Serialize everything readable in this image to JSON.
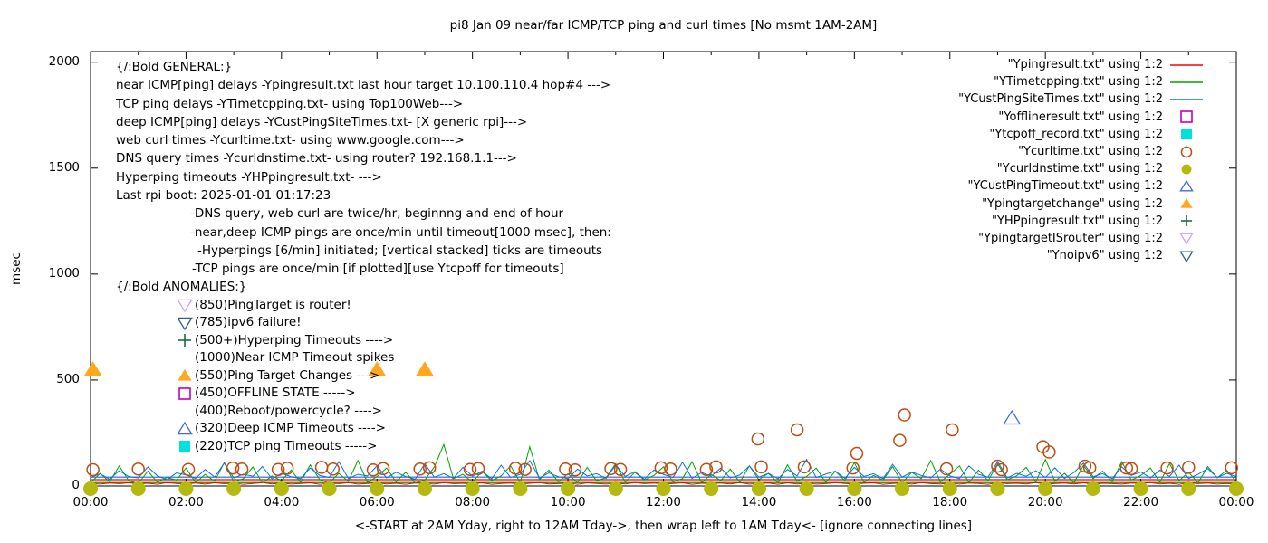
{
  "chart_data": {
    "type": "mixed-line-scatter",
    "title": "pi8 Jan 09  near/far ICMP/TCP ping and curl times [No msmt 1AM-2AM]",
    "ylabel": "msec",
    "xlabel": "<-START at 2AM Yday, right to 12AM Tday->, then wrap left to 1AM Tday<- [ignore connecting lines]",
    "grid": false,
    "legend_position": "top-right-inside",
    "x_range_hours": [
      0,
      24
    ],
    "y_range_msec": [
      0,
      2050
    ],
    "y_ticks": [
      0,
      500,
      1000,
      1500,
      2000
    ],
    "x_ticks": [
      {
        "h": 0,
        "label": "00:00"
      },
      {
        "h": 2,
        "label": "02:00"
      },
      {
        "h": 4,
        "label": "04:00"
      },
      {
        "h": 6,
        "label": "06:00"
      },
      {
        "h": 8,
        "label": "08:00"
      },
      {
        "h": 10,
        "label": "10:00"
      },
      {
        "h": 12,
        "label": "12:00"
      },
      {
        "h": 14,
        "label": "14:00"
      },
      {
        "h": 16,
        "label": "16:00"
      },
      {
        "h": 18,
        "label": "18:00"
      },
      {
        "h": 20,
        "label": "20:00"
      },
      {
        "h": 22,
        "label": "22:00"
      },
      {
        "h": 24,
        "label": "00:00"
      }
    ],
    "x_minor_tick_every_hours": 1,
    "baselines_msec": [
      {
        "color": "#0d6ef5",
        "msec": 42
      },
      {
        "color": "#ff0000",
        "msec": 30
      },
      {
        "color": "#00a400",
        "msec": 16
      }
    ],
    "series": [
      {
        "name": "Ypingresult.txt",
        "legend_label": "\"Ypingresult.txt\" using 1:2",
        "type": "line",
        "color": "#ff0000",
        "sample": "line",
        "x_start": 0,
        "x_step": 0.2,
        "values": [
          12,
          9,
          14,
          11,
          15,
          10,
          13,
          8,
          16,
          12,
          10,
          14,
          9,
          15,
          11,
          13,
          8,
          12,
          16,
          10,
          14,
          9,
          12,
          15,
          8,
          13,
          11,
          16,
          9,
          12,
          15,
          10,
          13,
          8,
          14,
          12,
          9,
          16,
          11,
          13,
          10,
          15,
          8,
          12,
          14,
          9,
          13,
          16,
          10,
          11,
          14,
          8,
          15,
          12,
          9,
          13,
          10,
          16,
          11,
          14,
          9,
          12,
          15,
          8,
          13,
          11,
          14,
          10,
          16,
          9,
          12,
          14,
          8,
          15,
          10,
          13,
          9,
          11,
          16,
          12,
          10,
          13,
          15,
          8,
          12,
          14,
          9,
          16,
          11,
          10,
          13,
          9,
          14,
          12,
          8,
          15,
          11,
          13,
          10,
          16,
          9,
          12,
          14,
          10,
          15,
          8,
          13,
          11,
          9,
          14,
          12,
          16,
          10,
          13,
          8,
          15,
          11,
          14,
          9,
          12,
          10
        ]
      },
      {
        "name": "YTimetcpping.txt",
        "legend_label": "\"YTimetcpping.txt\" using 1:2",
        "type": "line",
        "color": "#00a400",
        "sample": "line",
        "x_start": 0,
        "x_step": 0.2,
        "values": [
          15,
          60,
          20,
          95,
          25,
          12,
          70,
          18,
          40,
          28,
          85,
          16,
          55,
          22,
          110,
          20,
          35,
          90,
          14,
          48,
          25,
          75,
          18,
          100,
          30,
          15,
          60,
          22,
          120,
          17,
          45,
          85,
          20,
          65,
          15,
          28,
          90,
          195,
          35,
          55,
          18,
          70,
          25,
          48,
          95,
          16,
          185,
          30,
          75,
          20,
          58,
          15,
          88,
          24,
          40,
          105,
          18,
          65,
          28,
          50,
          90,
          20,
          35,
          115,
          16,
          55,
          25,
          80,
          18,
          95,
          30,
          60,
          15,
          100,
          22,
          45,
          85,
          17,
          70,
          25,
          110,
          18,
          50,
          28,
          92,
          15,
          65,
          35,
          120,
          20,
          55,
          95,
          16,
          75,
          25,
          105,
          30,
          48,
          88,
          18,
          125,
          22,
          60,
          15,
          98,
          35,
          70,
          20,
          115,
          28,
          50,
          85,
          18,
          105,
          25,
          65,
          15,
          92,
          38,
          75,
          20
        ]
      },
      {
        "name": "YCustPingSiteTimes.txt",
        "legend_label": "\"YCustPingSiteTimes.txt\" using 1:2",
        "type": "line",
        "color": "#0d6ef5",
        "sample": "line",
        "x_start": 0,
        "x_step": 0.2,
        "values": [
          40,
          58,
          32,
          72,
          45,
          38,
          90,
          48,
          30,
          62,
          52,
          36,
          78,
          42,
          108,
          38,
          56,
          46,
          92,
          34,
          60,
          44,
          35,
          85,
          50,
          40,
          115,
          36,
          55,
          48,
          95,
          38,
          65,
          45,
          32,
          105,
          42,
          58,
          36,
          88,
          46,
          70,
          34,
          98,
          40,
          55,
          120,
          38,
          62,
          44,
          35,
          80,
          48,
          58,
          36,
          100,
          45,
          68,
          32,
          75,
          55,
          40,
          112,
          36,
          64,
          46,
          85,
          38,
          52,
          95,
          42,
          60,
          34,
          78,
          48,
          125,
          40,
          56,
          70,
          36,
          88,
          45,
          58,
          35,
          102,
          42,
          66,
          50,
          38,
          80,
          48,
          35,
          95,
          55,
          42,
          115,
          38,
          60,
          46,
          72,
          40,
          86,
          36,
          64,
          108,
          44,
          58,
          35,
          90,
          50,
          66,
          38,
          75,
          45,
          98,
          36,
          55,
          82,
          40,
          60,
          45
        ]
      },
      {
        "name": "Yofflineresult.txt",
        "legend_label": "\"Yofflineresult.txt\" using 1:2",
        "type": "scatter",
        "marker": "square-open",
        "color": "#c000c0",
        "sample": "square-open",
        "points": []
      },
      {
        "name": "Ytcpoff_record.txt",
        "legend_label": "\"Ytcpoff_record.txt\" using 1:2",
        "type": "scatter",
        "marker": "square-filled",
        "color": "#00e0e0",
        "sample": "square-filled",
        "points": []
      },
      {
        "name": "Ycurltime.txt",
        "legend_label": "\"Ycurltime.txt\" using 1:2",
        "type": "scatter",
        "marker": "circle-open",
        "color": "#bf4b10",
        "sample": "circle-open",
        "points": [
          [
            0.05,
            77
          ],
          [
            1.0,
            80
          ],
          [
            2.05,
            78
          ],
          [
            2.98,
            85
          ],
          [
            3.17,
            80
          ],
          [
            3.93,
            78
          ],
          [
            4.12,
            84
          ],
          [
            4.84,
            88
          ],
          [
            5.08,
            80
          ],
          [
            5.92,
            76
          ],
          [
            6.13,
            82
          ],
          [
            6.9,
            80
          ],
          [
            7.1,
            86
          ],
          [
            7.95,
            78
          ],
          [
            8.12,
            82
          ],
          [
            8.9,
            84
          ],
          [
            9.1,
            78
          ],
          [
            9.95,
            80
          ],
          [
            10.15,
            76
          ],
          [
            10.9,
            82
          ],
          [
            11.1,
            78
          ],
          [
            11.95,
            86
          ],
          [
            12.15,
            80
          ],
          [
            12.9,
            78
          ],
          [
            13.1,
            90
          ],
          [
            13.98,
            222
          ],
          [
            14.05,
            90
          ],
          [
            14.8,
            265
          ],
          [
            14.95,
            90
          ],
          [
            15.97,
            85
          ],
          [
            16.05,
            154
          ],
          [
            16.95,
            215
          ],
          [
            17.05,
            335
          ],
          [
            17.93,
            81
          ],
          [
            18.05,
            265
          ],
          [
            19.0,
            94
          ],
          [
            19.08,
            77
          ],
          [
            19.95,
            185
          ],
          [
            20.08,
            160
          ],
          [
            20.83,
            94
          ],
          [
            20.93,
            86
          ],
          [
            21.7,
            85
          ],
          [
            21.8,
            82
          ],
          [
            22.55,
            85
          ],
          [
            23.0,
            88
          ],
          [
            23.9,
            86
          ]
        ]
      },
      {
        "name": "Ycurldnstime.txt",
        "legend_label": "\"Ycurldnstime.txt\" using 1:2",
        "type": "scatter",
        "marker": "circle-filled",
        "color": "#b5b80e",
        "sample": "circle-filled",
        "points": [
          [
            0,
            0
          ],
          [
            1,
            0
          ],
          [
            2,
            0
          ],
          [
            3,
            0
          ],
          [
            4,
            0
          ],
          [
            5,
            0
          ],
          [
            6,
            0
          ],
          [
            7,
            0
          ],
          [
            8,
            0
          ],
          [
            9,
            0
          ],
          [
            10,
            0
          ],
          [
            11,
            0
          ],
          [
            12,
            0
          ],
          [
            13,
            0
          ],
          [
            14,
            0
          ],
          [
            15,
            0
          ],
          [
            16,
            0
          ],
          [
            17,
            0
          ],
          [
            18,
            0
          ],
          [
            19,
            0
          ],
          [
            20,
            0
          ],
          [
            21,
            0
          ],
          [
            22,
            0
          ],
          [
            23,
            0
          ],
          [
            24,
            0
          ]
        ]
      },
      {
        "name": "YCustPingTimeout.txt",
        "legend_label": "\"YCustPingTimeout.txt\" using 1:2",
        "type": "scatter",
        "marker": "triangle-up-open",
        "color": "#4169e1",
        "sample": "triangle-up-open",
        "points": [
          [
            19.3,
            320
          ]
        ]
      },
      {
        "name": "Ypingtargetchange",
        "legend_label": "\"Ypingtargetchange\" using 1:2",
        "type": "scatter",
        "marker": "triangle-up-filled",
        "color": "#ffa81e",
        "sample": "triangle-up-filled",
        "points": [
          [
            0.05,
            550
          ],
          [
            6.0,
            550
          ],
          [
            7.0,
            550
          ]
        ]
      },
      {
        "name": "YHPpingresult.txt",
        "legend_label": "\"YHPpingresult.txt\" using 1:2",
        "type": "scatter",
        "marker": "plus",
        "color": "#15703c",
        "sample": "plus",
        "points": []
      },
      {
        "name": "YpingtargetISrouter",
        "legend_label": "\"YpingtargetISrouter\" using 1:2",
        "type": "scatter",
        "marker": "triangle-down-open",
        "color": "#c8a2ff",
        "sample": "triangle-down-open",
        "points": []
      },
      {
        "name": "Ynoipv6",
        "legend_label": "\"Ynoipv6\" using 1:2",
        "type": "scatter",
        "marker": "triangle-down-open",
        "color": "#33617d",
        "sample": "triangle-down-open",
        "points": []
      }
    ],
    "annotations": {
      "general": {
        "lines": [
          {
            "text": "{/:Bold GENERAL:}",
            "indent": 0
          },
          {
            "text": "near ICMP[ping] delays -Ypingresult.txt last hour target 10.100.110.4 hop#4 --->",
            "indent": 0
          },
          {
            "text": "TCP ping delays -YTimetcpping.txt- using Top100Web--->",
            "indent": 0
          },
          {
            "text": "deep ICMP[ping] delays -YCustPingSiteTimes.txt- [X generic rpi]--->",
            "indent": 0
          },
          {
            "text": "web curl times -Ycurltime.txt- using www.google.com--->",
            "indent": 0
          },
          {
            "text": "DNS query times -Ycurldnstime.txt- using router? 192.168.1.1--->",
            "indent": 0
          },
          {
            "text": "Hyperping timeouts -YHPpingresult.txt- --->",
            "indent": 0
          },
          {
            "text": "Last rpi boot: 2025-01-01 01:17:23",
            "indent": 0
          },
          {
            "text": "-DNS query, web curl are twice/hr, beginnng and end of hour",
            "indent": 82
          },
          {
            "text": "-near,deep ICMP pings are once/min until timeout[1000 msec], then:",
            "indent": 82
          },
          {
            "text": "-Hyperpings [6/min] initiated; [vertical stacked] ticks are timeouts",
            "indent": 90
          },
          {
            "text": "-TCP pings are once/min [if plotted][use Ytcpoff for timeouts]",
            "indent": 84
          }
        ]
      },
      "anomalies": {
        "header": "{/:Bold ANOMALIES:}",
        "rows": [
          {
            "glyph": "triangle-down-open",
            "color": "#c8a2ff",
            "text": "(850)PingTarget is router!"
          },
          {
            "glyph": "triangle-down-open",
            "color": "#33617d",
            "text": "(785)ipv6 failure!"
          },
          {
            "glyph": "plus",
            "color": "#15703c",
            "text": "(500+)Hyperping Timeouts ---->"
          },
          {
            "glyph": null,
            "color": null,
            "text": "(1000)Near ICMP Timeout spikes"
          },
          {
            "glyph": "triangle-up-filled",
            "color": "#ffa81e",
            "text": "(550)Ping Target Changes --->"
          },
          {
            "glyph": "square-open",
            "color": "#c000c0",
            "text": "(450)OFFLINE STATE ----->"
          },
          {
            "glyph": null,
            "color": null,
            "text": "(400)Reboot/powercycle? ---->"
          },
          {
            "glyph": "triangle-up-open",
            "color": "#4169e1",
            "text": "(320)Deep ICMP Timeouts ---->"
          },
          {
            "glyph": "square-filled",
            "color": "#00e0e0",
            "text": "(220)TCP ping Timeouts ----->"
          }
        ]
      }
    }
  }
}
